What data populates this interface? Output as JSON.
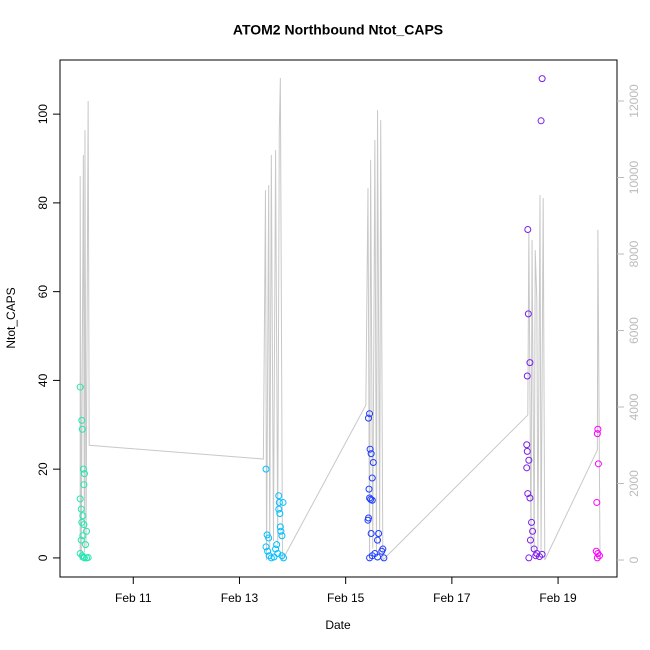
{
  "chart_data": {
    "type": "scatter",
    "title": "ATOM2 Northbound Ntot_CAPS",
    "x_label": "Date",
    "y_label": "Ntot_CAPS",
    "xlim": [
      9.62,
      20.11
    ],
    "ylim": [
      -4.3,
      112.2
    ],
    "y2lim": [
      -444,
      13072
    ],
    "xticks": [
      {
        "value": 11,
        "label": "Feb 11"
      },
      {
        "value": 13,
        "label": "Feb 13"
      },
      {
        "value": 15,
        "label": "Feb 15"
      },
      {
        "value": 17,
        "label": "Feb 17"
      },
      {
        "value": 19,
        "label": "Feb 19"
      }
    ],
    "yticks": [
      0,
      20,
      40,
      60,
      80,
      100
    ],
    "y2ticks": [
      0,
      2000,
      4000,
      6000,
      8000,
      10000,
      12000
    ],
    "y2_color": "#bbbbbb",
    "series": [
      {
        "type": "line",
        "axis": "y2",
        "color": "#c8c8c8",
        "x": [
          10.0,
          10.0,
          10.02,
          10.06,
          10.08,
          10.09,
          10.11,
          10.15,
          10.17,
          13.45,
          13.49,
          13.51,
          13.55,
          13.57,
          13.6,
          13.64,
          13.68,
          13.72,
          13.75,
          13.77,
          13.81,
          15.38,
          15.42,
          15.45,
          15.47,
          15.51,
          15.55,
          15.58,
          15.6,
          15.64,
          15.66,
          15.7,
          18.43,
          18.45,
          18.49,
          18.51,
          18.55,
          18.57,
          18.6,
          18.62,
          18.66,
          18.68,
          18.72,
          18.75,
          19.74,
          19.75,
          19.79
        ],
        "values": [
          0,
          10040,
          0,
          10590,
          200,
          11240,
          300,
          12000,
          3000,
          2640,
          9670,
          0,
          9800,
          300,
          10590,
          500,
          10720,
          400,
          11240,
          12600,
          0,
          4050,
          9720,
          0,
          10460,
          300,
          10980,
          200,
          11760,
          400,
          11500,
          0,
          3790,
          8575,
          300,
          8370,
          200,
          8100,
          6800,
          300,
          9540,
          200,
          9460,
          0,
          2875,
          8630,
          0
        ]
      },
      {
        "color": "#22e8b0",
        "x": [
          10.0,
          10.03,
          10.04,
          10.06,
          10.08,
          10.07,
          10.0,
          10.02,
          10.05,
          10.03,
          10.07,
          10.12,
          10.05,
          10.02,
          10.1,
          10.0,
          10.04,
          10.06,
          10.08,
          10.12,
          10.15
        ],
        "values": [
          38.5,
          31,
          29,
          20,
          19,
          16.5,
          13.3,
          11,
          9.5,
          8,
          7.5,
          6,
          5,
          4,
          3,
          1,
          0.5,
          0.2,
          0,
          0,
          0.1
        ]
      },
      {
        "color": "#00bfff",
        "x": [
          13.5,
          13.52,
          13.55,
          13.5,
          13.53,
          13.56,
          13.6,
          13.65,
          13.68,
          13.7,
          13.72,
          13.74,
          13.75,
          13.74,
          13.76,
          13.77,
          13.78,
          13.8,
          13.82,
          13.8,
          13.83
        ],
        "values": [
          20,
          5.2,
          4.5,
          2.5,
          1.5,
          0.5,
          0,
          0.2,
          2,
          3,
          1,
          14,
          12.5,
          11,
          10,
          7,
          6,
          5,
          12.5,
          0.5,
          0
        ]
      },
      {
        "color": "#1f3cff",
        "x": [
          15.45,
          15.43,
          15.46,
          15.48,
          15.52,
          15.5,
          15.44,
          15.45,
          15.47,
          15.5,
          15.43,
          15.42,
          15.48,
          15.62,
          15.6,
          15.7,
          15.68,
          15.55,
          15.5,
          15.45,
          15.6,
          15.72
        ],
        "values": [
          32.5,
          31.5,
          24.5,
          23.5,
          21.5,
          18,
          15.5,
          13.5,
          13.2,
          13,
          9,
          8.5,
          5.5,
          5.5,
          4,
          2,
          1.5,
          1,
          0.5,
          0,
          0.2,
          0
        ]
      },
      {
        "color": "#7b1fe8",
        "x": [
          18.7,
          18.68,
          18.43,
          18.44,
          18.47,
          18.42,
          18.41,
          18.42,
          18.45,
          18.41,
          18.43,
          18.47,
          18.5,
          18.52,
          18.48,
          18.55,
          18.6,
          18.58,
          18.45,
          18.65,
          18.7
        ],
        "values": [
          108,
          98.5,
          74,
          55,
          44,
          41,
          25.5,
          24,
          22,
          20.3,
          14.5,
          13.5,
          8,
          6,
          4,
          2,
          1,
          0.5,
          0,
          0.3,
          0.8
        ]
      },
      {
        "color": "#ff00ff",
        "x": [
          19.75,
          19.74,
          19.76,
          19.73,
          19.72,
          19.75,
          19.78,
          19.74
        ],
        "values": [
          29,
          28,
          21.2,
          12.5,
          1.5,
          1,
          0.5,
          0
        ]
      }
    ]
  }
}
